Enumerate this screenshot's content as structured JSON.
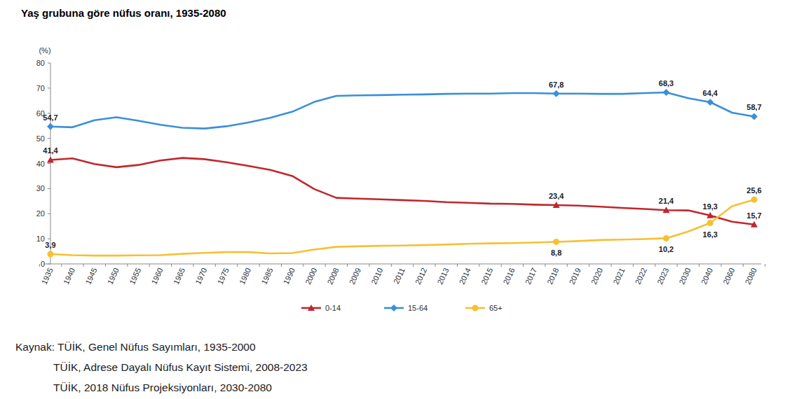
{
  "chart_data": {
    "type": "line",
    "title": "Yaş grubuna göre nüfus oranı, 1935-2080",
    "ylabel": "(%)",
    "categories": [
      "1935",
      "1940",
      "1945",
      "1950",
      "1955",
      "1960",
      "1965",
      "1970",
      "1975",
      "1980",
      "1985",
      "1990",
      "2000",
      "2008",
      "2009",
      "2010",
      "2011",
      "2012",
      "2013",
      "2014",
      "2015",
      "2016",
      "2017",
      "2018",
      "2019",
      "2020",
      "2021",
      "2022",
      "2023",
      "2030",
      "2040",
      "2060",
      "2080"
    ],
    "series": [
      {
        "name": "0-14",
        "color": "#c0272d",
        "marker": "triangle",
        "values": [
          41.4,
          42.0,
          39.8,
          38.5,
          39.4,
          41.2,
          42.2,
          41.7,
          40.5,
          39.0,
          37.4,
          35.0,
          29.8,
          26.3,
          26.0,
          25.7,
          25.4,
          25.1,
          24.6,
          24.3,
          24.0,
          23.9,
          23.6,
          23.4,
          23.2,
          22.8,
          22.3,
          21.9,
          21.4,
          21.3,
          19.3,
          16.8,
          15.7
        ],
        "value_labels": [
          "41,4",
          null,
          null,
          null,
          null,
          null,
          null,
          null,
          null,
          null,
          null,
          null,
          null,
          null,
          null,
          null,
          null,
          null,
          null,
          null,
          null,
          null,
          null,
          "23,4",
          null,
          null,
          null,
          null,
          "21,4",
          null,
          "19,3",
          null,
          "15,7"
        ]
      },
      {
        "name": "15-64",
        "color": "#3a8fd9",
        "marker": "diamond",
        "values": [
          54.7,
          54.4,
          57.2,
          58.4,
          57.0,
          55.4,
          54.2,
          53.9,
          54.8,
          56.3,
          58.2,
          60.6,
          64.5,
          66.9,
          67.1,
          67.2,
          67.4,
          67.5,
          67.7,
          67.8,
          67.8,
          68.0,
          68.0,
          67.8,
          67.8,
          67.7,
          67.7,
          68.0,
          68.3,
          66.0,
          64.4,
          60.2,
          58.7
        ],
        "value_labels": [
          "54,7",
          null,
          null,
          null,
          null,
          null,
          null,
          null,
          null,
          null,
          null,
          null,
          null,
          null,
          null,
          null,
          null,
          null,
          null,
          null,
          null,
          null,
          null,
          "67,8",
          null,
          null,
          null,
          null,
          "68,3",
          null,
          "64,4",
          null,
          "58,7"
        ]
      },
      {
        "name": "65+",
        "color": "#f5c033",
        "marker": "circle",
        "values": [
          3.9,
          3.5,
          3.3,
          3.3,
          3.4,
          3.5,
          4.0,
          4.4,
          4.7,
          4.7,
          4.2,
          4.3,
          5.7,
          6.8,
          7.0,
          7.2,
          7.3,
          7.5,
          7.7,
          8.0,
          8.2,
          8.3,
          8.5,
          8.8,
          9.1,
          9.5,
          9.7,
          9.9,
          10.2,
          12.9,
          16.3,
          23.0,
          25.6
        ],
        "value_labels": [
          "3,9",
          null,
          null,
          null,
          null,
          null,
          null,
          null,
          null,
          null,
          null,
          null,
          null,
          null,
          null,
          null,
          null,
          null,
          null,
          null,
          null,
          null,
          null,
          "8,8",
          null,
          null,
          null,
          null,
          "10,2",
          null,
          "16,3",
          null,
          "25,6"
        ]
      }
    ],
    "ylim": [
      0,
      80
    ],
    "yticks": [
      0,
      10,
      20,
      30,
      40,
      50,
      60,
      70,
      80
    ],
    "grid": false,
    "legend": "bottom",
    "data_labels": true,
    "source": [
      "Kaynak: TÜİK, Genel Nüfus Sayımları, 1935-2000",
      "TÜİK, Adrese Dayalı Nüfus Kayıt Sistemi, 2008-2023",
      "TÜİK, 2018 Nüfus Projeksiyonları, 2030-2080"
    ]
  }
}
